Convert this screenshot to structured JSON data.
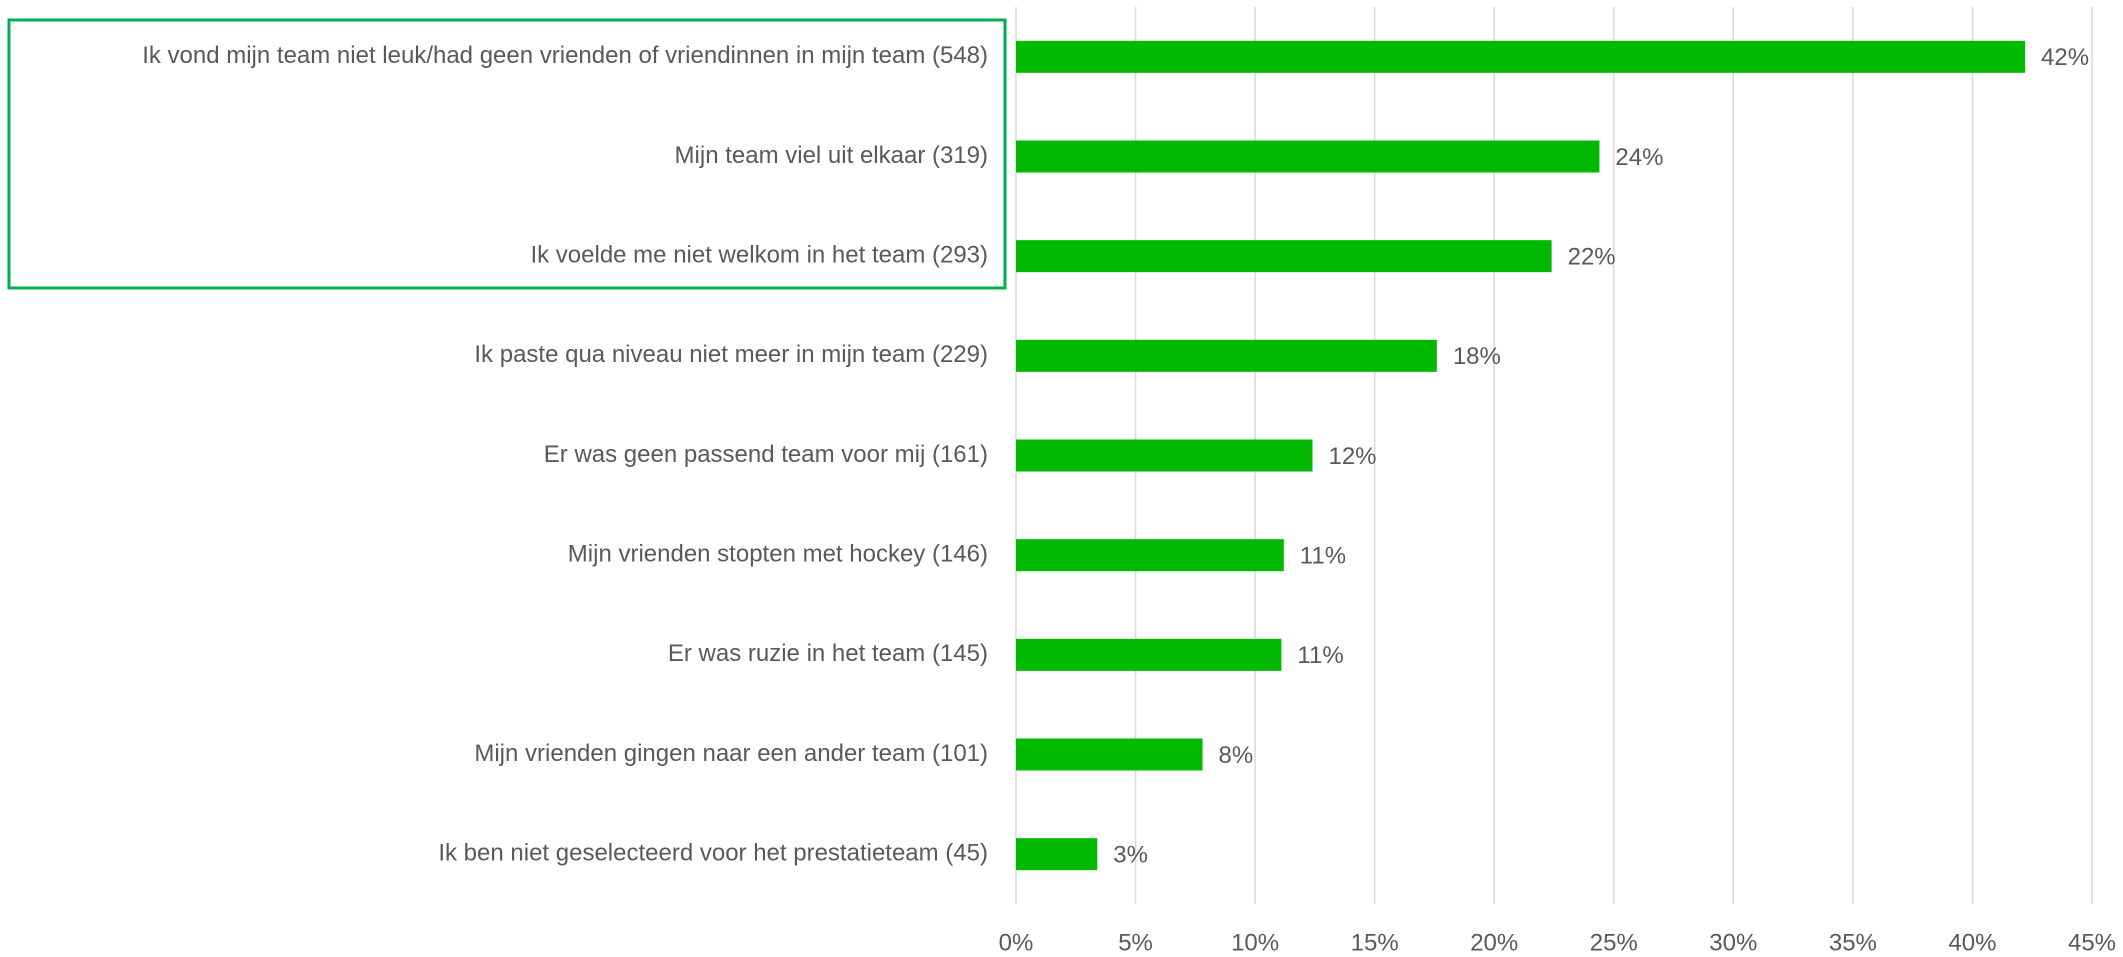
{
  "chart_data": {
    "type": "hbar",
    "categories": [
      "Ik vond mijn team niet leuk/had geen vrienden of vriendinnen in mijn team (548)",
      "Mijn team viel uit elkaar (319)",
      "Ik voelde me niet welkom in het team (293)",
      "Ik paste qua niveau niet meer in mijn team (229)",
      "Er was geen passend team voor mij (161)",
      "Mijn vrienden stopten met hockey (146)",
      "Er was ruzie in het team (145)",
      "Mijn vrienden gingen naar een ander team (101)",
      "Ik ben niet geselecteerd voor het prestatieteam (45)"
    ],
    "values": [
      42.2,
      24.4,
      22.4,
      17.6,
      12.4,
      11.2,
      11.1,
      7.8,
      3.4
    ],
    "value_labels": [
      "42%",
      "24%",
      "22%",
      "18%",
      "12%",
      "11%",
      "11%",
      "8%",
      "3%"
    ],
    "color": "#00b900",
    "xlim": [
      0,
      45
    ],
    "xticks": [
      {
        "value": 0,
        "label": "0%"
      },
      {
        "value": 5,
        "label": "5%"
      },
      {
        "value": 10,
        "label": "10%"
      },
      {
        "value": 15,
        "label": "15%"
      },
      {
        "value": 20,
        "label": "20%"
      },
      {
        "value": 25,
        "label": "25%"
      },
      {
        "value": 30,
        "label": "30%"
      },
      {
        "value": 35,
        "label": "35%"
      },
      {
        "value": 40,
        "label": "40%"
      },
      {
        "value": 45,
        "label": "45%"
      }
    ],
    "grid": true
  }
}
